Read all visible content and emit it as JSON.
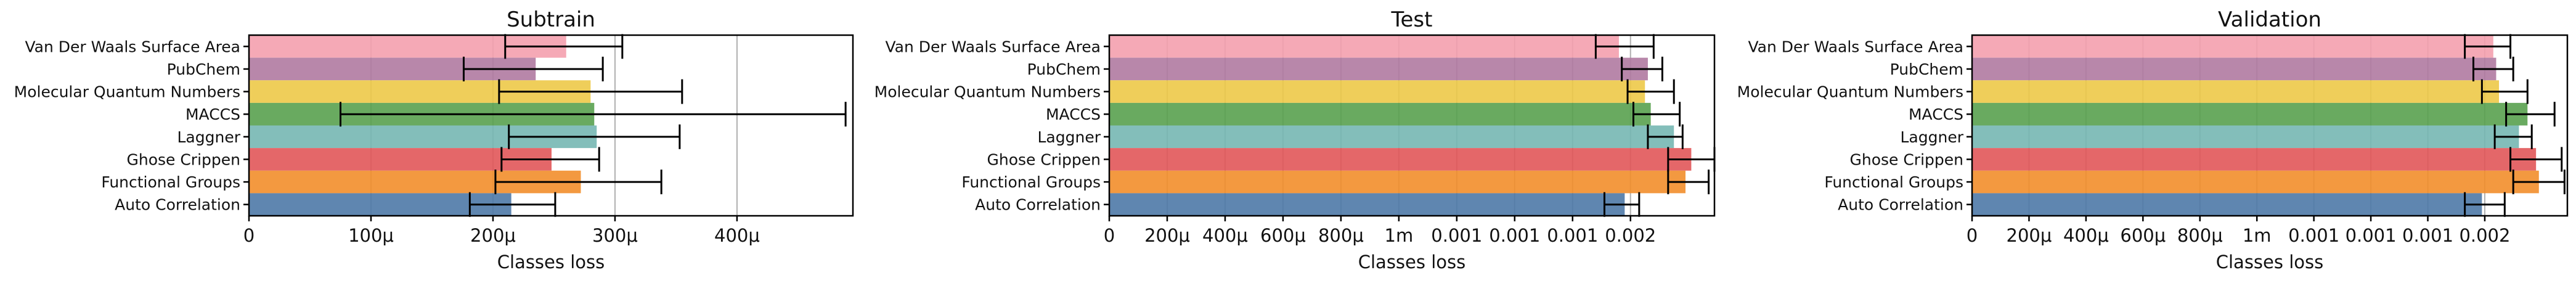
{
  "chart_data": [
    {
      "type": "bar",
      "orientation": "horizontal",
      "title": "Subtrain",
      "xlabel": "Classes loss",
      "ylabel": "",
      "xlim": [
        0,
        0.000495
      ],
      "x_ticks": [
        0,
        0.0001,
        0.0002,
        0.0003,
        0.0004
      ],
      "x_tick_labels": [
        "0",
        "100μ",
        "200μ",
        "300μ",
        "400μ"
      ],
      "grid": "x",
      "categories": [
        "Van Der Waals Surface Area",
        "PubChem",
        "Molecular Quantum Numbers",
        "MACCS",
        "Laggner",
        "Ghose Crippen",
        "Functional Groups",
        "Auto Correlation"
      ],
      "values": [
        0.00026,
        0.000235,
        0.00028,
        0.000283,
        0.000285,
        0.000248,
        0.000272,
        0.000215
      ],
      "error": [
        4.8e-05,
        5.7e-05,
        7.5e-05,
        0.000207,
        7e-05,
        4e-05,
        6.8e-05,
        3.5e-05
      ],
      "error_center": [
        0.000258,
        0.000233,
        0.00028,
        0.000282,
        0.000283,
        0.000247,
        0.00027,
        0.000216
      ],
      "colors": [
        "#f4a0ae",
        "#b07aa1",
        "#edc948",
        "#59a14f",
        "#76b7b2",
        "#e15759",
        "#f28e2b",
        "#4e79a7"
      ]
    },
    {
      "type": "bar",
      "orientation": "horizontal",
      "title": "Test",
      "xlabel": "Classes loss",
      "ylabel": "",
      "xlim": [
        0,
        0.00209
      ],
      "x_ticks": [
        0,
        0.0002,
        0.0004,
        0.0006,
        0.0008,
        0.001,
        0.0012,
        0.0014,
        0.0016,
        0.0018
      ],
      "x_tick_labels": [
        "0",
        "200μ",
        "400μ",
        "600μ",
        "800μ",
        "1m",
        "0.001",
        "0.001",
        "0.001",
        "0.002"
      ],
      "grid": "x",
      "categories": [
        "Van Der Waals Surface Area",
        "PubChem",
        "Molecular Quantum Numbers",
        "MACCS",
        "Laggner",
        "Ghose Crippen",
        "Functional Groups",
        "Auto Correlation"
      ],
      "values": [
        0.00176,
        0.00186,
        0.00185,
        0.00187,
        0.00195,
        0.00201,
        0.00199,
        0.00178
      ],
      "error": [
        0.0001,
        7e-05,
        8e-05,
        8e-05,
        6e-05,
        8e-05,
        7e-05,
        6e-05
      ],
      "error_center": [
        0.00178,
        0.00184,
        0.00187,
        0.00189,
        0.00192,
        0.00201,
        0.002,
        0.00177
      ],
      "colors": [
        "#f4a0ae",
        "#b07aa1",
        "#edc948",
        "#59a14f",
        "#76b7b2",
        "#e15759",
        "#f28e2b",
        "#4e79a7"
      ]
    },
    {
      "type": "bar",
      "orientation": "horizontal",
      "title": "Validation",
      "xlabel": "Classes loss",
      "ylabel": "",
      "xlim": [
        0,
        0.00209
      ],
      "x_ticks": [
        0,
        0.0002,
        0.0004,
        0.0006,
        0.0008,
        0.001,
        0.0012,
        0.0014,
        0.0016,
        0.0018
      ],
      "x_tick_labels": [
        "0",
        "200μ",
        "400μ",
        "600μ",
        "800μ",
        "1m",
        "0.001",
        "0.001",
        "0.001",
        "0.002"
      ],
      "grid": "x",
      "categories": [
        "Van Der Waals Surface Area",
        "PubChem",
        "Molecular Quantum Numbers",
        "MACCS",
        "Laggner",
        "Ghose Crippen",
        "Functional Groups",
        "Auto Correlation"
      ],
      "values": [
        0.00183,
        0.00184,
        0.00185,
        0.00195,
        0.00192,
        0.00198,
        0.00199,
        0.00179
      ],
      "error": [
        8e-05,
        7e-05,
        8e-05,
        8.5e-05,
        6.5e-05,
        9e-05,
        9e-05,
        7e-05
      ],
      "error_center": [
        0.00181,
        0.00183,
        0.00187,
        0.00196,
        0.0019,
        0.00198,
        0.00199,
        0.0018
      ],
      "colors": [
        "#f4a0ae",
        "#b07aa1",
        "#edc948",
        "#59a14f",
        "#76b7b2",
        "#e15759",
        "#f28e2b",
        "#4e79a7"
      ]
    }
  ]
}
